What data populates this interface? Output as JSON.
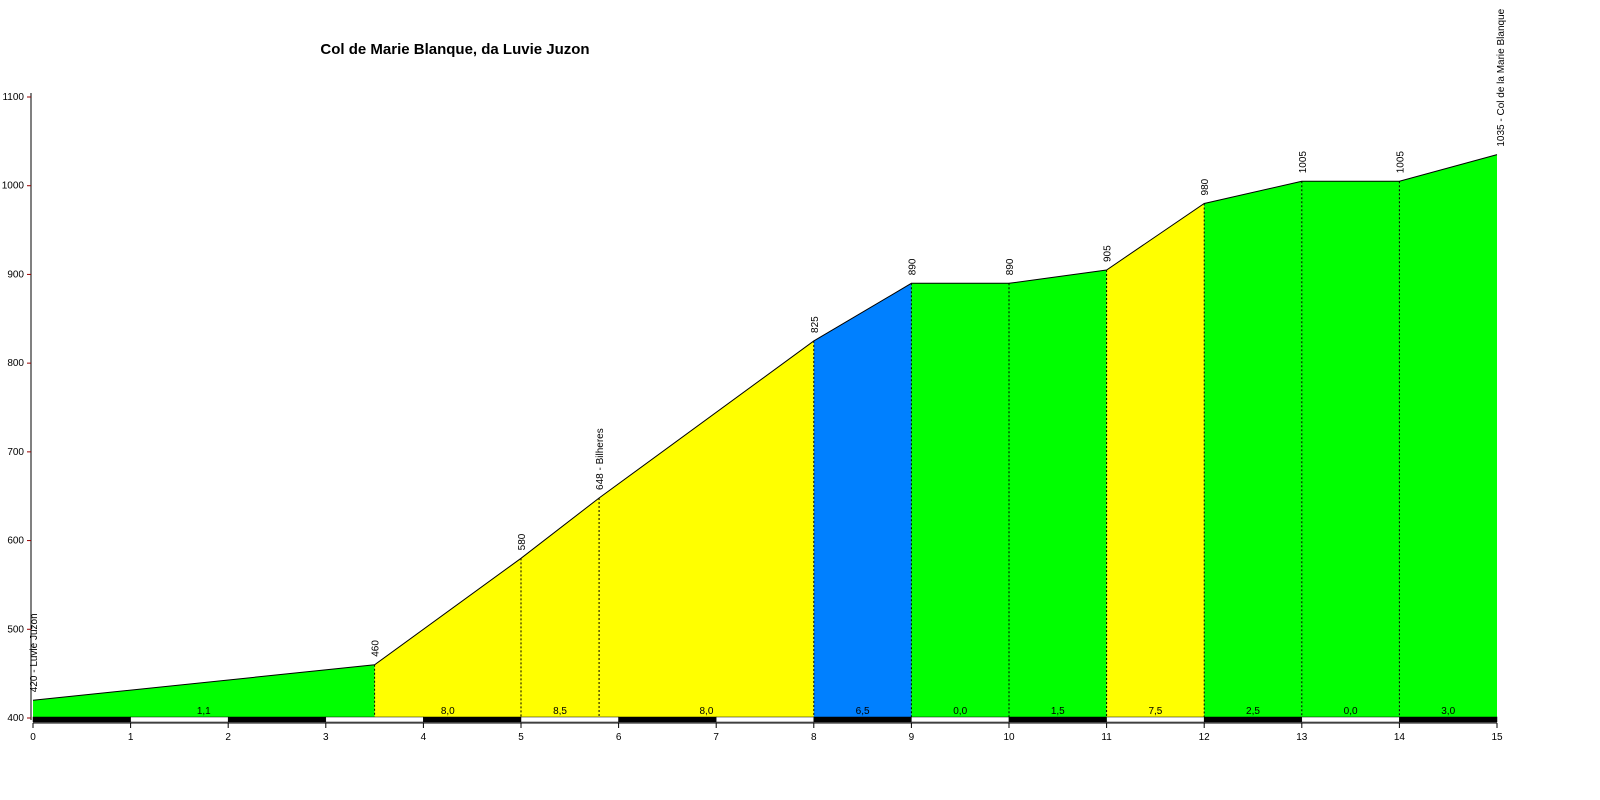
{
  "chart_data": {
    "type": "area",
    "title": "Col de Marie Blanque, da Luvie Juzon",
    "xlabel": "",
    "ylabel": "",
    "xlim": [
      0,
      15
    ],
    "ylim": [
      400,
      1100
    ],
    "x_ticks": [
      "0",
      "1",
      "2",
      "3",
      "4",
      "5",
      "6",
      "7",
      "8",
      "9",
      "10",
      "11",
      "12",
      "13",
      "14",
      "15"
    ],
    "y_ticks": [
      "1100",
      "1000",
      "900",
      "800",
      "700",
      "600",
      "500",
      "400"
    ],
    "grid": false,
    "legend": "none",
    "points": [
      {
        "x": 0,
        "y": 420,
        "label": "420 - Luvie Juzon"
      },
      {
        "x": 3.5,
        "y": 460,
        "label": "460"
      },
      {
        "x": 5,
        "y": 580,
        "label": "580"
      },
      {
        "x": 5.8,
        "y": 648,
        "label": "648 - Bilheres"
      },
      {
        "x": 8,
        "y": 825,
        "label": "825"
      },
      {
        "x": 9,
        "y": 890,
        "label": "890"
      },
      {
        "x": 10,
        "y": 890,
        "label": "890"
      },
      {
        "x": 11,
        "y": 905,
        "label": "905"
      },
      {
        "x": 12,
        "y": 980,
        "label": "980"
      },
      {
        "x": 13,
        "y": 1005,
        "label": "1005"
      },
      {
        "x": 14,
        "y": 1005,
        "label": "1005"
      },
      {
        "x": 15,
        "y": 1035,
        "label": "1035 - Col de la Marie Blanque"
      }
    ],
    "segments": [
      {
        "grade": "1,1",
        "color": "#00ff00"
      },
      {
        "grade": "8,0",
        "color": "#ffff00"
      },
      {
        "grade": "8,5",
        "color": "#ffff00"
      },
      {
        "grade": "8,0",
        "color": "#ffff00"
      },
      {
        "grade": "6,5",
        "color": "#0080ff"
      },
      {
        "grade": "0,0",
        "color": "#00ff00"
      },
      {
        "grade": "1,5",
        "color": "#00ff00"
      },
      {
        "grade": "7,5",
        "color": "#ffff00"
      },
      {
        "grade": "2,5",
        "color": "#00ff00"
      },
      {
        "grade": "0,0",
        "color": "#00ff00"
      },
      {
        "grade": "3,0",
        "color": "#00ff00"
      }
    ],
    "colors": {
      "profile_line": "#000000",
      "axis": "#000000",
      "axis_tick": "#990000",
      "km_bar_dark": "#000000",
      "km_bar_light": "#ffffff"
    }
  }
}
